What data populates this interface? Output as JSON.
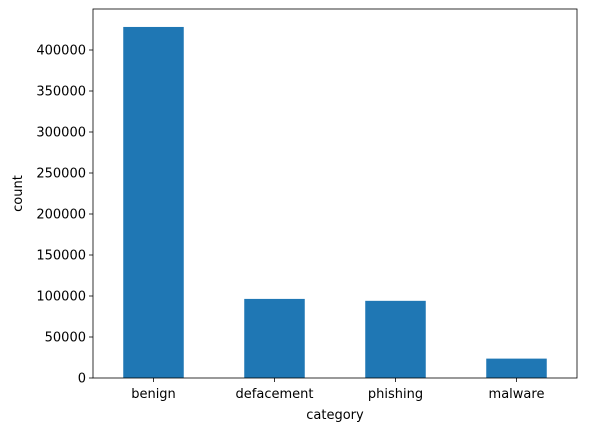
{
  "chart_data": {
    "type": "bar",
    "categories": [
      "benign",
      "defacement",
      "phishing",
      "malware"
    ],
    "values": [
      428103,
      96457,
      94111,
      23645
    ],
    "title": "",
    "xlabel": "category",
    "ylabel": "count",
    "ylim": [
      0,
      450000
    ],
    "yticks": [
      0,
      50000,
      100000,
      150000,
      200000,
      250000,
      300000,
      350000,
      400000
    ],
    "grid": false,
    "legend": "none",
    "bar_color": "#1f77b4"
  }
}
